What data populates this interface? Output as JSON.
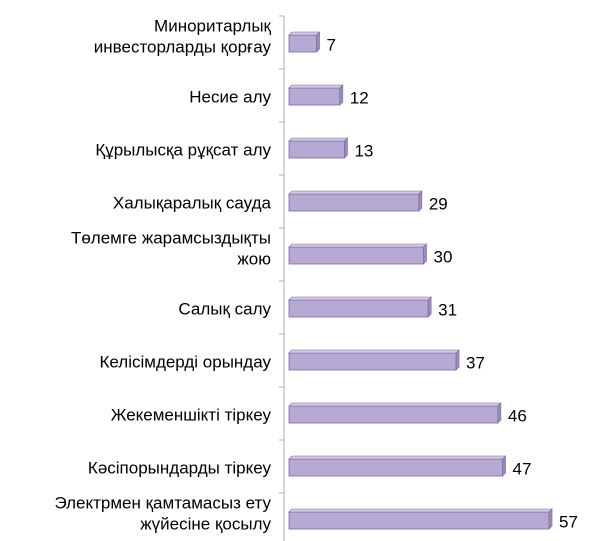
{
  "chart_data": {
    "type": "bar",
    "orientation": "horizontal",
    "categories": [
      "Миноритарлық инвесторларды қорғау",
      "Несие алу",
      "Құрылысқа рұқсат алу",
      "Халықаралық сауда",
      "Төлемге жарамсыздықты жою",
      "Салық салу",
      "Келісімдерді орындау",
      "Жекеменшікті тіркеу",
      "Кәсіпорындарды тіркеу",
      "Электрмен қамтамасыз ету жүйесіне қосылу"
    ],
    "category_lines": [
      [
        "Миноритарлық",
        "инвесторларды қорғау"
      ],
      [
        "Несие алу"
      ],
      [
        "Құрылысқа рұқсат алу"
      ],
      [
        "Халықаралық сауда"
      ],
      [
        "Төлемге жарамсыздықты",
        "жою"
      ],
      [
        "Салық салу"
      ],
      [
        "Келісімдерді орындау"
      ],
      [
        "Жекеменшікті тіркеу"
      ],
      [
        "Кәсіпорындарды тіркеу"
      ],
      [
        "Электрмен қамтамасыз ету",
        "жүйесіне қосылу"
      ]
    ],
    "values": [
      7,
      12,
      13,
      29,
      30,
      31,
      37,
      46,
      47,
      57
    ],
    "axis": {
      "reversed": true,
      "min": 0,
      "max": 71
    },
    "grid": false,
    "legend": "none",
    "colors": {
      "bar": "#b6a9d3",
      "bar_edge": "#7c6c9e",
      "bar_side": "#9a8bbd",
      "axis": "#b0b0b0",
      "text": "#000000"
    }
  }
}
